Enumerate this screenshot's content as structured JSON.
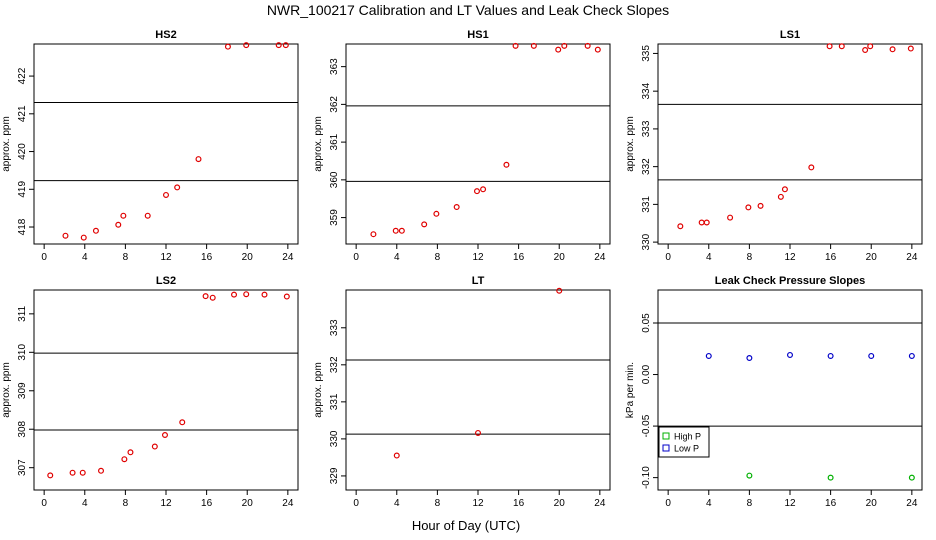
{
  "title": "NWR_100217  Calibration and LT Values and Leak Check Slopes",
  "xlabel": "Hour of Day (UTC)",
  "colors": {
    "cal_points": "#e00000",
    "high_p": "#00b000",
    "low_p": "#0000c8",
    "lines": "#000000"
  },
  "chart_data": [
    {
      "type": "scatter",
      "title": "HS2",
      "ylabel": "approx. ppm",
      "xlim": [
        -1,
        25
      ],
      "xticks": [
        0,
        4,
        8,
        12,
        16,
        20,
        24
      ],
      "ylim": [
        417.55,
        422.85
      ],
      "yticks": [
        418,
        419,
        420,
        421,
        422
      ],
      "hlines": [
        419.23,
        421.3
      ],
      "series": [
        {
          "name": "cal",
          "x": [
            2.1,
            3.9,
            5.1,
            7.3,
            7.8,
            10.2,
            12.0,
            13.1,
            15.2,
            18.1,
            19.9,
            23.1,
            23.8
          ],
          "y": [
            417.77,
            417.72,
            417.9,
            418.06,
            418.3,
            418.3,
            418.85,
            419.05,
            419.8,
            422.78,
            422.82,
            422.82,
            422.82
          ]
        }
      ]
    },
    {
      "type": "scatter",
      "title": "HS1",
      "ylabel": "approx. ppm",
      "xlim": [
        -1,
        25
      ],
      "xticks": [
        0,
        4,
        8,
        12,
        16,
        20,
        24
      ],
      "ylim": [
        358.3,
        363.6
      ],
      "yticks": [
        359,
        360,
        361,
        362,
        363
      ],
      "hlines": [
        359.96,
        361.96
      ],
      "series": [
        {
          "name": "cal",
          "x": [
            1.7,
            3.9,
            4.5,
            6.7,
            7.9,
            9.9,
            11.9,
            12.5,
            14.8,
            15.7,
            17.5,
            19.9,
            20.5,
            22.8,
            23.8
          ],
          "y": [
            358.56,
            358.65,
            358.65,
            358.82,
            359.1,
            359.28,
            359.7,
            359.75,
            360.4,
            363.55,
            363.55,
            363.45,
            363.55,
            363.55,
            363.45
          ]
        }
      ]
    },
    {
      "type": "scatter",
      "title": "LS1",
      "ylabel": "approx. ppm",
      "xlim": [
        -1,
        25
      ],
      "xticks": [
        0,
        4,
        8,
        12,
        16,
        20,
        24
      ],
      "ylim": [
        329.95,
        335.25
      ],
      "yticks": [
        330,
        331,
        332,
        333,
        334,
        335
      ],
      "hlines": [
        331.65,
        333.65
      ],
      "series": [
        {
          "name": "cal",
          "x": [
            1.2,
            3.3,
            3.8,
            6.1,
            7.9,
            9.1,
            11.1,
            11.5,
            14.1,
            15.9,
            17.1,
            19.4,
            19.9,
            22.1,
            23.9
          ],
          "y": [
            330.42,
            330.52,
            330.52,
            330.65,
            330.92,
            330.96,
            331.2,
            331.4,
            331.98,
            335.19,
            335.19,
            335.09,
            335.19,
            335.11,
            335.13
          ]
        }
      ]
    },
    {
      "type": "scatter",
      "title": "LS2",
      "ylabel": "approx. ppm",
      "xlim": [
        -1,
        25
      ],
      "xticks": [
        0,
        4,
        8,
        12,
        16,
        20,
        24
      ],
      "ylim": [
        306.42,
        311.62
      ],
      "yticks": [
        307,
        308,
        309,
        310,
        311
      ],
      "hlines": [
        307.98,
        309.98
      ],
      "series": [
        {
          "name": "cal",
          "x": [
            0.6,
            2.8,
            3.8,
            5.6,
            7.9,
            8.5,
            10.9,
            11.9,
            13.6,
            15.9,
            16.6,
            18.7,
            19.9,
            21.7,
            23.9
          ],
          "y": [
            306.8,
            306.87,
            306.87,
            306.92,
            307.22,
            307.4,
            307.55,
            307.85,
            308.18,
            311.46,
            311.42,
            311.5,
            311.51,
            311.5,
            311.45
          ]
        }
      ]
    },
    {
      "type": "scatter",
      "title": "LT",
      "ylabel": "approx. ppm",
      "xlim": [
        -1,
        25
      ],
      "xticks": [
        0,
        4,
        8,
        12,
        16,
        20,
        24
      ],
      "ylim": [
        328.62,
        334.02
      ],
      "yticks": [
        329,
        330,
        331,
        332,
        333
      ],
      "hlines": [
        330.13,
        332.13
      ],
      "series": [
        {
          "name": "cal",
          "x": [
            4.0,
            12.0,
            20.0
          ],
          "y": [
            329.55,
            330.16,
            334.0
          ]
        }
      ]
    },
    {
      "type": "scatter",
      "title": "Leak Check Pressure Slopes",
      "ylabel": "kPa per min.",
      "xlim": [
        -1,
        25
      ],
      "xticks": [
        0,
        4,
        8,
        12,
        16,
        20,
        24
      ],
      "ylim": [
        -0.112,
        0.082
      ],
      "yticks": [
        -0.1,
        -0.05,
        0.0,
        0.05
      ],
      "yticklabels": [
        "-0.10",
        "-0.05",
        "0.00",
        "0.05"
      ],
      "hlines": [
        0.05,
        -0.05
      ],
      "legend": {
        "position": "bottom-left",
        "entries": [
          "High P",
          "Low P"
        ]
      },
      "series": [
        {
          "name": "High P",
          "x": [
            8,
            16,
            24
          ],
          "y": [
            -0.098,
            -0.1,
            -0.1
          ]
        },
        {
          "name": "Low P",
          "x": [
            4,
            8,
            12,
            16,
            20,
            24
          ],
          "y": [
            0.018,
            0.016,
            0.019,
            0.018,
            0.018,
            0.018
          ]
        }
      ]
    }
  ]
}
